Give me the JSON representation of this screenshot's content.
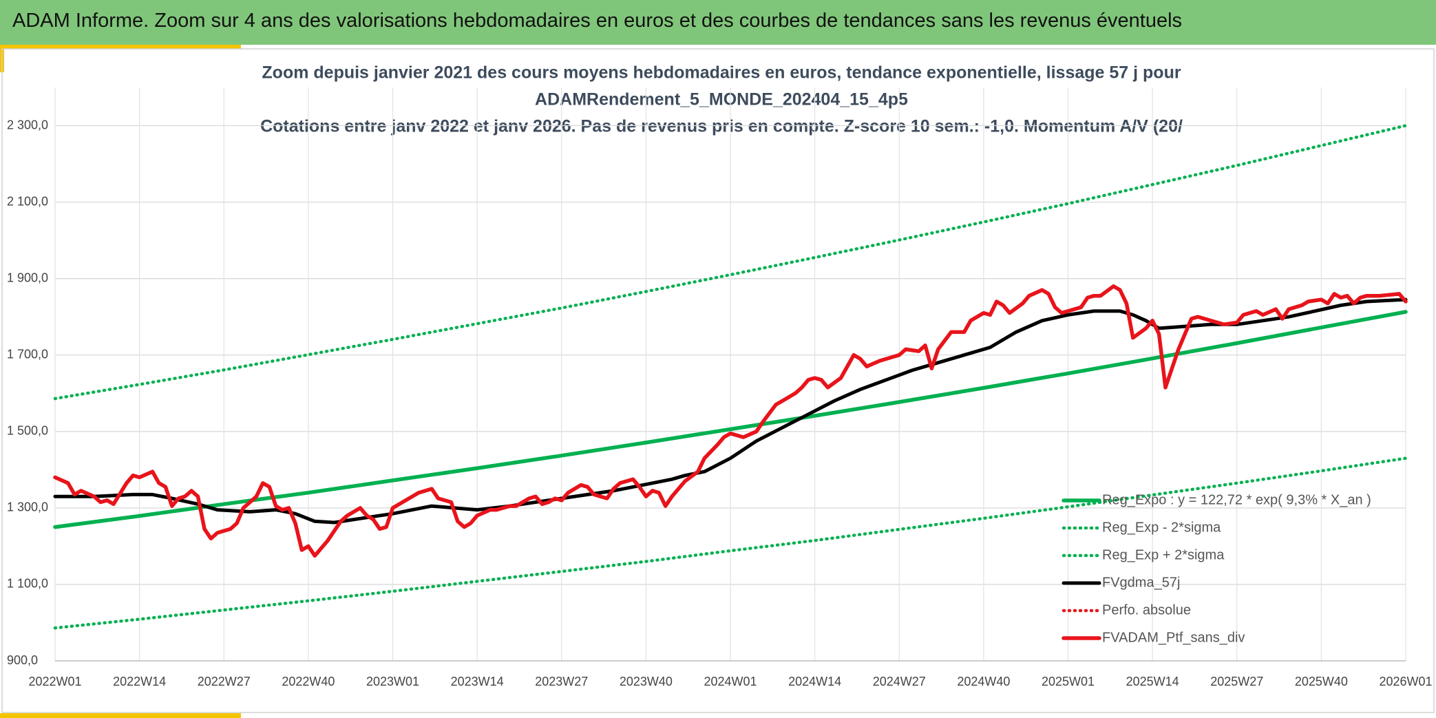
{
  "page_title": "ADAM Informe. Zoom sur 4 ans des valorisations hebdomadaires en euros et des courbes de tendances sans les revenus éventuels",
  "chart_data": {
    "type": "line",
    "title": [
      "Zoom depuis janvier 2021 des cours moyens hebdomadaires en euros, tendance exponentielle, lissage 57 j pour",
      "ADAMRendement_5_MONDE_202404_15_4p5",
      "Cotations entre janv 2022 et janv 2026. Pas de revenus pris en compte. Z-score 10 sem.: -1,0. Momentum A/V (20/"
    ],
    "xlim": [
      0,
      208
    ],
    "xticks": [
      {
        "value": 0,
        "label": "2022W01"
      },
      {
        "value": 13,
        "label": "2022W14"
      },
      {
        "value": 26,
        "label": "2022W27"
      },
      {
        "value": 39,
        "label": "2022W40"
      },
      {
        "value": 52,
        "label": "2023W01"
      },
      {
        "value": 65,
        "label": "2023W14"
      },
      {
        "value": 78,
        "label": "2023W27"
      },
      {
        "value": 91,
        "label": "2023W40"
      },
      {
        "value": 104,
        "label": "2024W01"
      },
      {
        "value": 117,
        "label": "2024W14"
      },
      {
        "value": 130,
        "label": "2024W27"
      },
      {
        "value": 143,
        "label": "2024W40"
      },
      {
        "value": 156,
        "label": "2025W01"
      },
      {
        "value": 169,
        "label": "2025W14"
      },
      {
        "value": 182,
        "label": "2025W27"
      },
      {
        "value": 195,
        "label": "2025W40"
      },
      {
        "value": 208,
        "label": "2026W01"
      }
    ],
    "ylim": [
      900,
      2400
    ],
    "yticks": [
      {
        "value": 900,
        "label": "900,0"
      },
      {
        "value": 1100,
        "label": "1 100,0"
      },
      {
        "value": 1300,
        "label": "1 300,0"
      },
      {
        "value": 1500,
        "label": "1 500,0"
      },
      {
        "value": 1700,
        "label": "1 700,0"
      },
      {
        "value": 1900,
        "label": "1 900,0"
      },
      {
        "value": 2100,
        "label": "2 100,0"
      },
      {
        "value": 2300,
        "label": "2 300,0"
      }
    ],
    "grid": true,
    "legend": "bottom-right",
    "series": [
      {
        "name": "Reg_Expo : y = 122,72 * exp( 9,3% *  X_an )",
        "color": "#00b050",
        "style": "solid",
        "x": [
          0,
          13,
          26,
          39,
          52,
          65,
          78,
          91,
          104,
          117,
          130,
          143,
          156,
          169,
          182,
          195,
          208
        ],
        "values": [
          1250,
          1279,
          1310,
          1340,
          1372,
          1404,
          1437,
          1471,
          1506,
          1541,
          1577,
          1614,
          1652,
          1691,
          1731,
          1772,
          1813
        ]
      },
      {
        "name": "Reg_Exp - 2*sigma",
        "color": "#00b050",
        "style": "dotted",
        "x": [
          0,
          13,
          26,
          39,
          52,
          65,
          78,
          91,
          104,
          117,
          130,
          143,
          156,
          169,
          182,
          195,
          208
        ],
        "values": [
          986,
          1009,
          1033,
          1057,
          1082,
          1108,
          1134,
          1160,
          1188,
          1215,
          1244,
          1273,
          1303,
          1334,
          1365,
          1397,
          1430
        ]
      },
      {
        "name": "Reg_Exp + 2*sigma",
        "color": "#00b050",
        "style": "dotted",
        "x": [
          0,
          13,
          26,
          39,
          52,
          65,
          78,
          91,
          104,
          117,
          130,
          143,
          156,
          169,
          182,
          195,
          208
        ],
        "values": [
          1586,
          1623,
          1661,
          1701,
          1741,
          1782,
          1823,
          1866,
          1910,
          1955,
          2001,
          2048,
          2096,
          2146,
          2196,
          2248,
          2300
        ]
      },
      {
        "name": "FVgdma_57j",
        "color": "#000000",
        "style": "solid",
        "x": [
          0,
          6,
          12,
          15,
          18,
          22,
          25,
          30,
          34,
          37,
          40,
          43,
          48,
          52,
          58,
          65,
          70,
          78,
          86,
          95,
          97,
          100,
          104,
          108,
          112,
          116,
          120,
          124,
          128,
          132,
          136,
          140,
          144,
          148,
          152,
          156,
          160,
          164,
          166,
          168,
          170,
          174,
          178,
          182,
          186,
          190,
          194,
          198,
          202,
          208
        ],
        "values": [
          1330,
          1330,
          1335,
          1335,
          1325,
          1310,
          1295,
          1290,
          1295,
          1285,
          1265,
          1262,
          1275,
          1285,
          1305,
          1295,
          1305,
          1325,
          1345,
          1375,
          1385,
          1395,
          1430,
          1475,
          1510,
          1545,
          1580,
          1610,
          1635,
          1660,
          1680,
          1700,
          1720,
          1760,
          1790,
          1805,
          1815,
          1815,
          1805,
          1790,
          1770,
          1775,
          1780,
          1780,
          1790,
          1800,
          1815,
          1830,
          1840,
          1845
        ]
      },
      {
        "name": "Perfo. absolue",
        "color": "#e8141b",
        "style": "dotted",
        "x": [],
        "values": []
      },
      {
        "name": "FVADAM_Ptf_sans_div",
        "color": "#e8141b",
        "style": "solid",
        "x": [
          0,
          2,
          3,
          4,
          6,
          7,
          8,
          9,
          11,
          12,
          13,
          15,
          16,
          17,
          18,
          19,
          20,
          21,
          22,
          23,
          24,
          25,
          27,
          28,
          29,
          31,
          32,
          33,
          34,
          35,
          36,
          37,
          38,
          39,
          40,
          42,
          44,
          45,
          47,
          48,
          49,
          50,
          51,
          52,
          54,
          56,
          58,
          59,
          61,
          62,
          63,
          64,
          65,
          67,
          68,
          70,
          71,
          73,
          74,
          75,
          76,
          77,
          78,
          79,
          81,
          82,
          83,
          85,
          86,
          87,
          89,
          90,
          91,
          92,
          93,
          94,
          95,
          97,
          99,
          100,
          102,
          103,
          104,
          105,
          106,
          108,
          109,
          111,
          112,
          114,
          115,
          116,
          117,
          118,
          119,
          121,
          122,
          123,
          124,
          125,
          127,
          129,
          130,
          131,
          133,
          134,
          135,
          136,
          138,
          140,
          141,
          143,
          144,
          145,
          146,
          147,
          149,
          150,
          152,
          153,
          154,
          155,
          157,
          158,
          159,
          160,
          161,
          163,
          164,
          165,
          166,
          168,
          169,
          170,
          171,
          172,
          173,
          175,
          176,
          178,
          179,
          180,
          182,
          183,
          185,
          186,
          188,
          189,
          190,
          192,
          193,
          195,
          196,
          197,
          198,
          199,
          200,
          201,
          202,
          204,
          207,
          208
        ],
        "values": [
          1380,
          1365,
          1335,
          1345,
          1330,
          1315,
          1320,
          1310,
          1365,
          1385,
          1380,
          1395,
          1365,
          1355,
          1305,
          1325,
          1330,
          1345,
          1330,
          1245,
          1220,
          1235,
          1245,
          1260,
          1300,
          1330,
          1365,
          1355,
          1305,
          1295,
          1300,
          1260,
          1190,
          1200,
          1175,
          1215,
          1265,
          1280,
          1300,
          1280,
          1270,
          1245,
          1250,
          1300,
          1320,
          1340,
          1350,
          1325,
          1315,
          1265,
          1250,
          1260,
          1280,
          1295,
          1295,
          1305,
          1305,
          1325,
          1330,
          1310,
          1315,
          1325,
          1320,
          1340,
          1360,
          1355,
          1335,
          1325,
          1350,
          1365,
          1375,
          1355,
          1330,
          1345,
          1340,
          1305,
          1330,
          1370,
          1395,
          1430,
          1465,
          1485,
          1495,
          1490,
          1485,
          1500,
          1525,
          1570,
          1580,
          1600,
          1615,
          1635,
          1640,
          1635,
          1615,
          1640,
          1670,
          1700,
          1690,
          1670,
          1685,
          1695,
          1700,
          1715,
          1710,
          1725,
          1665,
          1715,
          1760,
          1760,
          1790,
          1810,
          1805,
          1840,
          1830,
          1810,
          1835,
          1855,
          1870,
          1860,
          1825,
          1810,
          1820,
          1825,
          1850,
          1855,
          1855,
          1880,
          1870,
          1835,
          1745,
          1770,
          1790,
          1755,
          1615,
          1665,
          1715,
          1795,
          1800,
          1790,
          1785,
          1780,
          1785,
          1805,
          1815,
          1805,
          1820,
          1795,
          1820,
          1830,
          1840,
          1845,
          1835,
          1860,
          1850,
          1855,
          1835,
          1850,
          1855,
          1855,
          1860,
          1840
        ]
      }
    ]
  }
}
